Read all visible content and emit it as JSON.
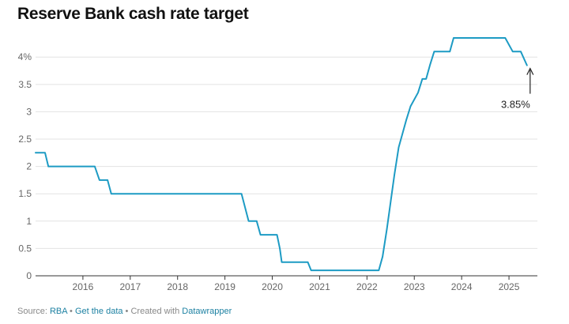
{
  "header": {
    "title": "Reserve Bank cash rate target"
  },
  "footer": {
    "source_prefix": "Source: ",
    "source_link": "RBA",
    "sep1": " • ",
    "get_data": "Get the data",
    "sep2": " • Created with ",
    "datawrapper": "Datawrapper"
  },
  "chart_data": {
    "type": "line",
    "title": "Reserve Bank cash rate target",
    "xlabel": "",
    "ylabel": "",
    "xlim": [
      2015.0,
      2025.6
    ],
    "ylim": [
      0,
      4.35
    ],
    "grid": true,
    "y_ticks": [
      0,
      0.5,
      1,
      1.5,
      2,
      2.5,
      3,
      3.5,
      4
    ],
    "y_tick_labels": [
      "0",
      "0.5",
      "1",
      "1.5",
      "2",
      "2.5",
      "3",
      "3.5",
      "4%"
    ],
    "x_ticks": [
      2016,
      2017,
      2018,
      2019,
      2020,
      2021,
      2022,
      2023,
      2024,
      2025
    ],
    "x_tick_labels": [
      "2016",
      "2017",
      "2018",
      "2019",
      "2020",
      "2021",
      "2022",
      "2023",
      "2024",
      "2025"
    ],
    "line_color": "#1d9bc4",
    "series": [
      {
        "points": [
          [
            2015.0,
            2.25
          ],
          [
            2015.2,
            2.25
          ],
          [
            2015.27,
            2.0
          ],
          [
            2016.25,
            2.0
          ],
          [
            2016.35,
            1.75
          ],
          [
            2016.52,
            1.75
          ],
          [
            2016.6,
            1.5
          ],
          [
            2019.35,
            1.5
          ],
          [
            2019.5,
            1.0
          ],
          [
            2019.67,
            1.0
          ],
          [
            2019.75,
            0.75
          ],
          [
            2020.1,
            0.75
          ],
          [
            2020.16,
            0.5
          ],
          [
            2020.2,
            0.25
          ],
          [
            2020.75,
            0.25
          ],
          [
            2020.82,
            0.1
          ],
          [
            2022.25,
            0.1
          ],
          [
            2022.33,
            0.35
          ],
          [
            2022.42,
            0.85
          ],
          [
            2022.5,
            1.35
          ],
          [
            2022.58,
            1.85
          ],
          [
            2022.67,
            2.35
          ],
          [
            2022.75,
            2.6
          ],
          [
            2022.83,
            2.85
          ],
          [
            2022.92,
            3.1
          ],
          [
            2023.08,
            3.35
          ],
          [
            2023.17,
            3.6
          ],
          [
            2023.25,
            3.6
          ],
          [
            2023.33,
            3.85
          ],
          [
            2023.42,
            4.1
          ],
          [
            2023.75,
            4.1
          ],
          [
            2023.83,
            4.35
          ],
          [
            2024.92,
            4.35
          ],
          [
            2025.08,
            4.1
          ],
          [
            2025.25,
            4.1
          ],
          [
            2025.38,
            3.85
          ]
        ]
      }
    ],
    "annotation": {
      "text": "3.85%",
      "x": 2025.38,
      "y": 3.85
    }
  }
}
